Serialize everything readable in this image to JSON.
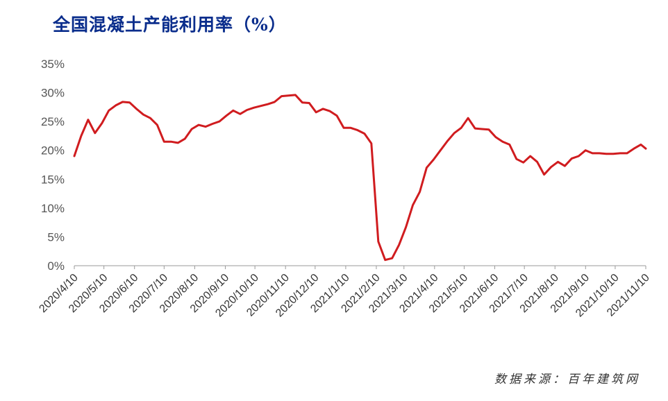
{
  "chart_data": {
    "type": "line",
    "title": "全国混凝土产能利用率（%）",
    "source": "数据来源：百年建筑网",
    "ylim": [
      0,
      35
    ],
    "ytick_labels": [
      "0%",
      "5%",
      "10%",
      "15%",
      "20%",
      "25%",
      "30%",
      "35%"
    ],
    "ytick_values": [
      0,
      5,
      10,
      15,
      20,
      25,
      30,
      35
    ],
    "xlim": [
      "2020/4/10",
      "2021/11/10"
    ],
    "xtick_labels": [
      "2020/4/10",
      "2020/5/10",
      "2020/6/10",
      "2020/7/10",
      "2020/8/10",
      "2020/9/10",
      "2020/10/10",
      "2020/11/10",
      "2020/12/10",
      "2021/1/10",
      "2021/2/10",
      "2021/3/10",
      "2021/4/10",
      "2021/5/10",
      "2021/6/10",
      "2021/7/10",
      "2021/8/10",
      "2021/9/10",
      "2021/10/10",
      "2021/11/10"
    ],
    "grid": false,
    "legend": "none",
    "line_color": "#d01c1f",
    "series": [
      {
        "x": [
          "2020/4/10",
          "2020/4/17",
          "2020/4/24",
          "2020/5/1",
          "2020/5/8",
          "2020/5/15",
          "2020/5/22",
          "2020/5/29",
          "2020/6/5",
          "2020/6/12",
          "2020/6/19",
          "2020/6/26",
          "2020/7/3",
          "2020/7/10",
          "2020/7/17",
          "2020/7/24",
          "2020/7/31",
          "2020/8/7",
          "2020/8/14",
          "2020/8/21",
          "2020/8/28",
          "2020/9/4",
          "2020/9/11",
          "2020/9/18",
          "2020/9/25",
          "2020/10/2",
          "2020/10/9",
          "2020/10/16",
          "2020/10/23",
          "2020/10/30",
          "2020/11/6",
          "2020/11/13",
          "2020/11/20",
          "2020/11/27",
          "2020/12/4",
          "2020/12/11",
          "2020/12/18",
          "2020/12/25",
          "2021/1/1",
          "2021/1/8",
          "2021/1/15",
          "2021/1/22",
          "2021/1/29",
          "2021/2/5",
          "2021/2/12",
          "2021/2/19",
          "2021/2/26",
          "2021/3/5",
          "2021/3/12",
          "2021/3/19",
          "2021/3/26",
          "2021/4/2",
          "2021/4/9",
          "2021/4/16",
          "2021/4/23",
          "2021/4/30",
          "2021/5/7",
          "2021/5/14",
          "2021/5/21",
          "2021/5/28",
          "2021/6/4",
          "2021/6/11",
          "2021/6/18",
          "2021/6/25",
          "2021/7/2",
          "2021/7/9",
          "2021/7/16",
          "2021/7/23",
          "2021/7/30",
          "2021/8/6",
          "2021/8/13",
          "2021/8/20",
          "2021/8/27",
          "2021/9/3",
          "2021/9/10",
          "2021/9/17",
          "2021/9/24",
          "2021/10/1",
          "2021/10/8",
          "2021/10/15",
          "2021/10/22",
          "2021/10/29",
          "2021/11/5",
          "2021/11/10"
        ],
        "values": [
          19.0,
          22.5,
          25.3,
          23.0,
          24.7,
          26.9,
          27.8,
          28.4,
          28.3,
          27.2,
          26.2,
          25.6,
          24.4,
          21.5,
          21.5,
          21.3,
          22.0,
          23.7,
          24.4,
          24.1,
          24.6,
          25.0,
          26.0,
          26.9,
          26.3,
          27.0,
          27.4,
          27.7,
          28.0,
          28.4,
          29.4,
          29.5,
          29.6,
          28.3,
          28.2,
          26.6,
          27.2,
          26.8,
          26.0,
          23.9,
          23.9,
          23.5,
          22.9,
          21.2,
          4.2,
          1.0,
          1.3,
          3.6,
          6.7,
          10.5,
          12.8,
          17.0,
          18.4,
          20.0,
          21.6,
          23.0,
          23.9,
          25.6,
          23.8,
          23.7,
          23.6,
          22.3,
          21.5,
          21.0,
          18.5,
          17.9,
          19.0,
          18.0,
          15.8,
          17.1,
          18.0,
          17.3,
          18.6,
          19.0,
          20.0,
          19.5,
          19.5,
          19.4,
          19.4,
          19.5,
          19.5,
          20.3,
          21.0,
          20.3
        ]
      }
    ]
  }
}
